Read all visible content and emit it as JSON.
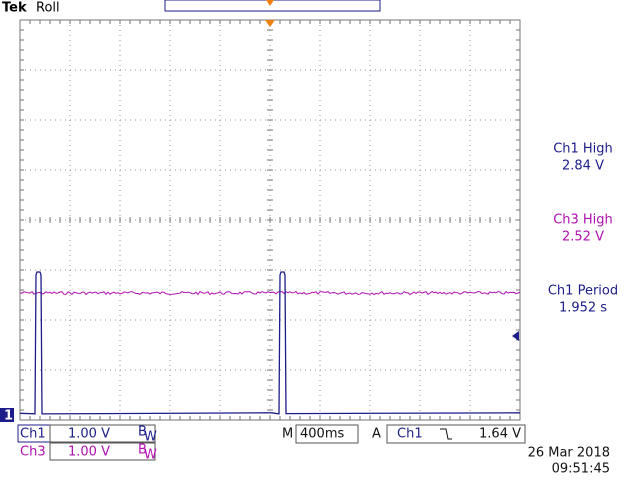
{
  "header": {
    "brand": "Tek",
    "mode": "Roll"
  },
  "measurements": [
    {
      "label": "Ch1 High",
      "value": "2.84 V",
      "color": "#1c1c8a"
    },
    {
      "label": "Ch3 High",
      "value": "2.52 V",
      "color": "#b010b0"
    },
    {
      "label": "Ch1 Period",
      "value": "1.952 s",
      "color": "#1c1c8a"
    }
  ],
  "ground_marker": "1",
  "channels": [
    {
      "name": "Ch1",
      "scale": "1.00 V",
      "bw": [
        "B",
        "W"
      ],
      "color": "#1c1c8a"
    },
    {
      "name": "Ch3",
      "scale": "1.00 V",
      "bw": [
        "B",
        "W"
      ],
      "color": "#b010b0"
    }
  ],
  "timebase": {
    "prefix": "M",
    "value": "400ms"
  },
  "trigger": {
    "prefix": "A",
    "source": "Ch1",
    "level": "1.64 V"
  },
  "date": "26 Mar 2018",
  "time": "09:51:45"
}
